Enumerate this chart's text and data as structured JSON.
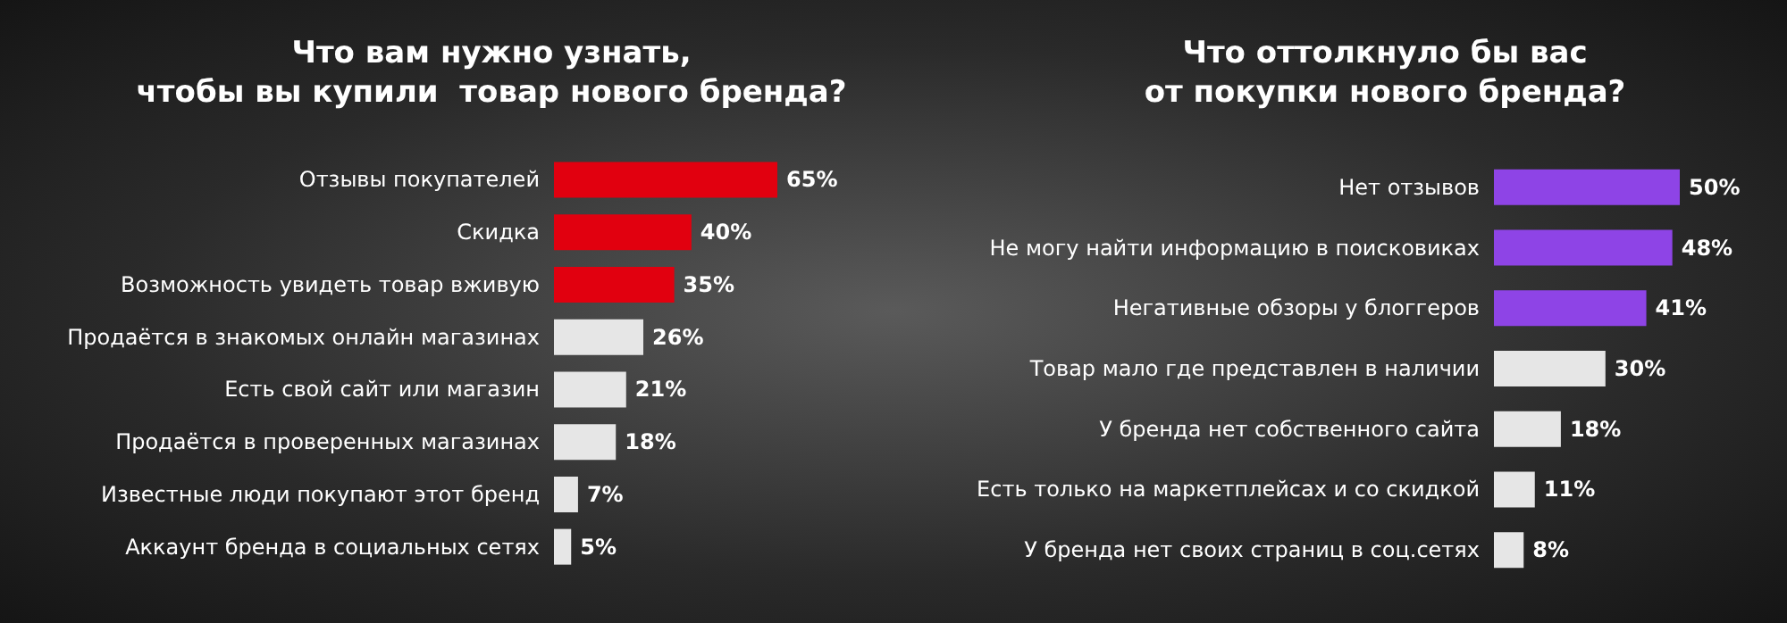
{
  "chart_data": [
    {
      "type": "bar",
      "orientation": "horizontal",
      "title": "Что вам нужно узнать,\nчтобы вы купили  товар нового бренда?",
      "categories": [
        "Отзывы покупателей",
        "Скидка",
        "Возможность увидеть товар вживую",
        "Продаётся в знакомых онлайн магазинах",
        "Есть свой сайт или магазин",
        "Продаётся в проверенных магазинах",
        "Известные люди покупают этот бренд",
        "Аккаунт бренда в социальных сетях"
      ],
      "values": [
        65,
        40,
        35,
        26,
        21,
        18,
        7,
        5
      ],
      "value_labels": [
        "65%",
        "40%",
        "35%",
        "26%",
        "21%",
        "18%",
        "7%",
        "5%"
      ],
      "colors": [
        "#e1000f",
        "#e1000f",
        "#e1000f",
        "#e6e6e6",
        "#e6e6e6",
        "#e6e6e6",
        "#e6e6e6",
        "#e6e6e6"
      ]
    },
    {
      "type": "bar",
      "orientation": "horizontal",
      "title": "Что оттолкнуло бы вас\nот покупки нового бренда?",
      "categories": [
        "Нет отзывов",
        "Не могу найти информацию в поисковиках",
        "Негативные обзоры у блоггеров",
        "Товар мало где представлен в наличии",
        "У бренда нет собственного сайта",
        "Есть только на маркетплейсах и со скидкой",
        "У бренда нет своих страниц в соц.сетях"
      ],
      "values": [
        50,
        48,
        41,
        30,
        18,
        11,
        8
      ],
      "value_labels": [
        "50%",
        "48%",
        "41%",
        "30%",
        "18%",
        "11%",
        "8%"
      ],
      "colors": [
        "#8e44e6",
        "#8e44e6",
        "#8e44e6",
        "#e6e6e6",
        "#e6e6e6",
        "#e6e6e6",
        "#e6e6e6"
      ]
    }
  ]
}
